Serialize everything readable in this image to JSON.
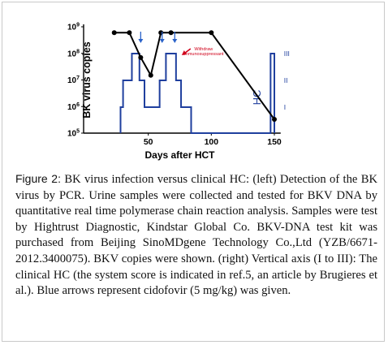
{
  "chart_data": {
    "type": "line",
    "xlabel": "Days after HCT",
    "ylabel": "BK virus copies",
    "xlim": [
      0,
      155
    ],
    "ylim_log10": [
      5,
      9
    ],
    "y_scale": "log",
    "x_ticks": [
      {
        "value": 50,
        "label": "50"
      },
      {
        "value": 100,
        "label": "100"
      },
      {
        "value": 150,
        "label": "150"
      }
    ],
    "y_ticks": [
      {
        "exp": 5,
        "base": "10",
        "sup": "5"
      },
      {
        "exp": 6,
        "base": "10",
        "sup": "6"
      },
      {
        "exp": 7,
        "base": "10",
        "sup": "7"
      },
      {
        "exp": 8,
        "base": "10",
        "sup": "8"
      },
      {
        "exp": 9,
        "base": "10",
        "sup": "9"
      }
    ],
    "series": [
      {
        "color": "#000000",
        "marker": "circle",
        "points": [
          {
            "x": 23,
            "y": 600000000
          },
          {
            "x": 35,
            "y": 600000000
          },
          {
            "x": 44,
            "y": 70000000
          },
          {
            "x": 52,
            "y": 15000000
          },
          {
            "x": 60,
            "y": 600000000
          },
          {
            "x": 68,
            "y": 600000000
          },
          {
            "x": 100,
            "y": 600000000
          },
          {
            "x": 150,
            "y": 330000
          }
        ]
      },
      {
        "color": "#1f3f9e",
        "axis": "right",
        "steps": [
          {
            "x": 28,
            "level": "I"
          },
          {
            "x": 30,
            "level": "II"
          },
          {
            "x": 37,
            "level": "III"
          },
          {
            "x": 43,
            "level": "II"
          },
          {
            "x": 47,
            "level": "I"
          },
          {
            "x": 59,
            "level": "II"
          },
          {
            "x": 64,
            "level": "III"
          },
          {
            "x": 72,
            "level": "II"
          },
          {
            "x": 76,
            "level": "I"
          },
          {
            "x": 84,
            "level": "0"
          },
          {
            "x": 147,
            "level": "III"
          },
          {
            "x": 150,
            "level": "0"
          }
        ]
      }
    ],
    "right_axis": {
      "label": "HC",
      "ticks": [
        "I",
        "II",
        "III"
      ]
    },
    "cidofovir_arrow_days": [
      44,
      61,
      71
    ],
    "annotation": {
      "line1": "Withdraw",
      "line2": "immunosuppressant",
      "day": 81,
      "color": "#d0021b"
    },
    "colors": {
      "line": "#000000",
      "hc": "#1f3f9e",
      "arrows": "#2a62c9"
    }
  },
  "caption": {
    "label": "Figure 2:",
    "text": " BK virus infection versus clinical HC: (left) Detection of the BK virus by PCR. Urine samples were collected and tested for BKV DNA by quantitative real time polymerase chain reaction analysis. Samples were test by Hightrust Diagnostic, Kindstar Global Co. BKV-DNA test kit was purchased from Beijing SinoMDgene Technology Co.,Ltd (YZB/6671-2012.3400075). BKV copies were shown. (right) Vertical axis (I to III): The clinical HC (the system score is indicated in ref.5, an article by Brugieres et al.). Blue arrows represent cidofovir (5 mg/kg) was given."
  }
}
